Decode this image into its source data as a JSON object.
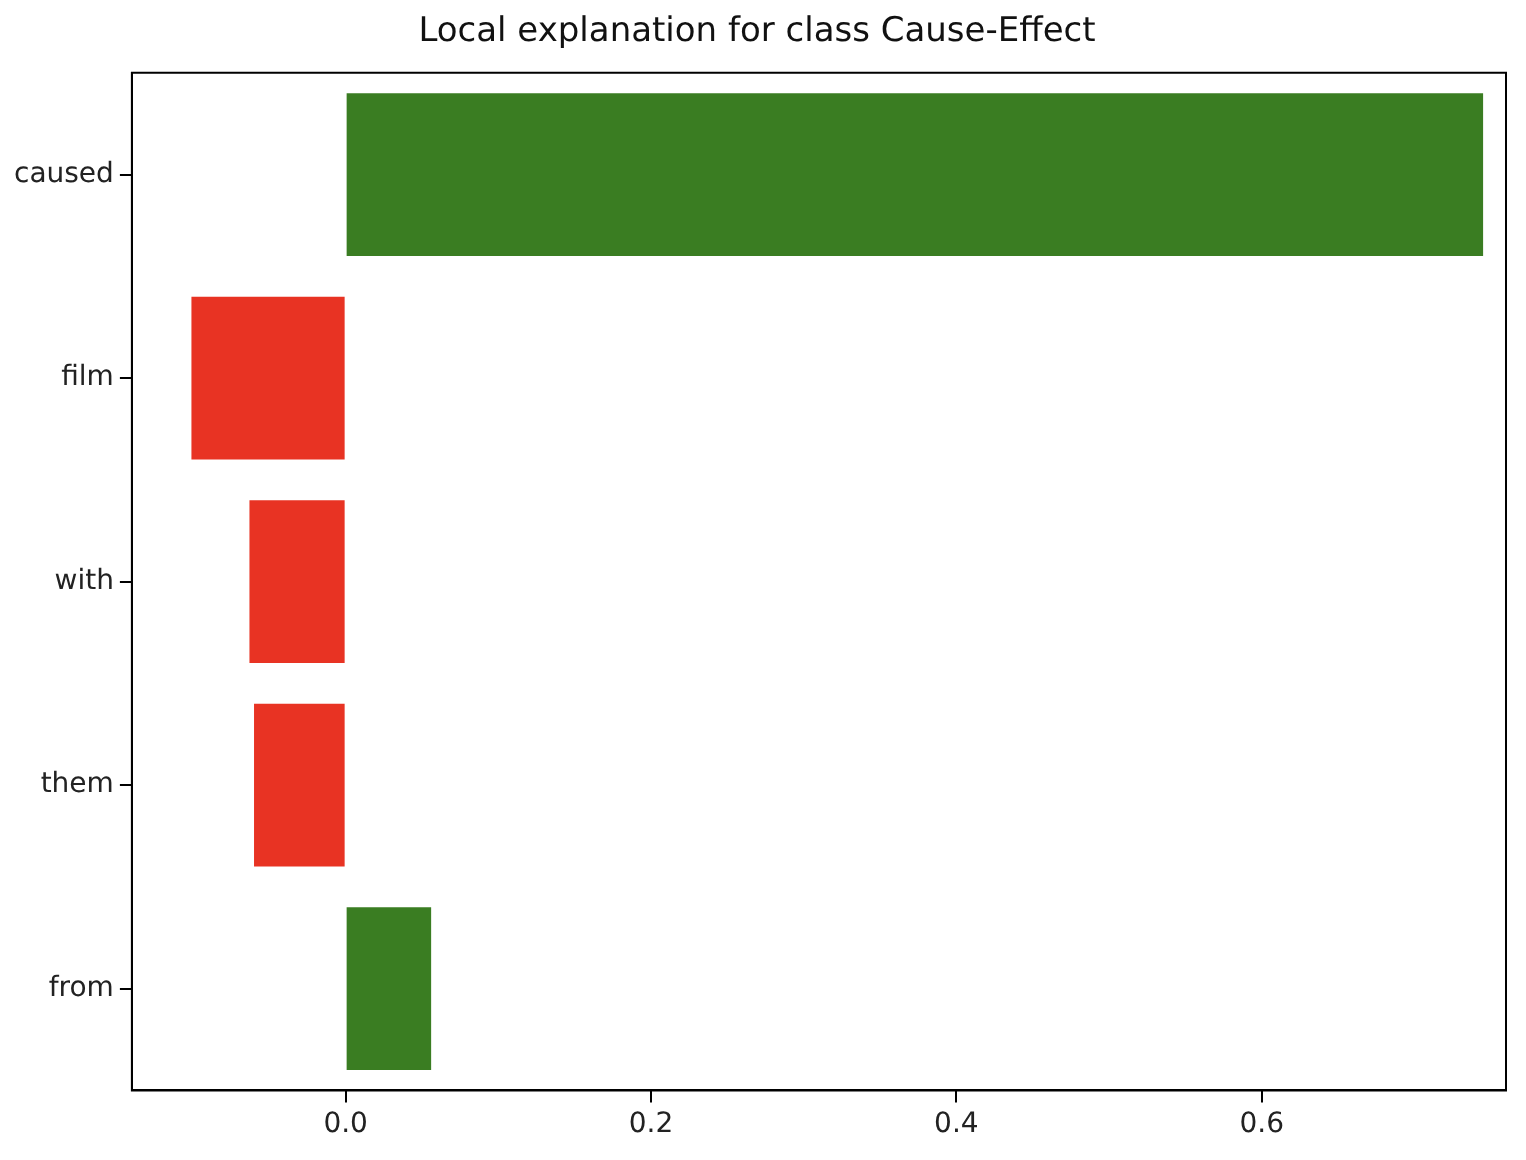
{
  "chart_data": {
    "type": "bar",
    "orientation": "horizontal",
    "title": "Local explanation for class Cause-Effect",
    "categories": [
      "caused",
      "film",
      "with",
      "them",
      "from"
    ],
    "values": [
      0.745,
      -0.101,
      -0.063,
      -0.06,
      0.056
    ],
    "colors": [
      "#3a7d22",
      "#e83323",
      "#e83323",
      "#e83323",
      "#3a7d22"
    ],
    "xlim": [
      -0.14,
      0.76
    ],
    "xticks": [
      {
        "value": 0,
        "label": "0.0"
      },
      {
        "value": 0.2,
        "label": "0.2"
      },
      {
        "value": 0.4,
        "label": "0.4"
      },
      {
        "value": 0.6,
        "label": "0.6"
      }
    ],
    "grid": false,
    "legend": false
  }
}
